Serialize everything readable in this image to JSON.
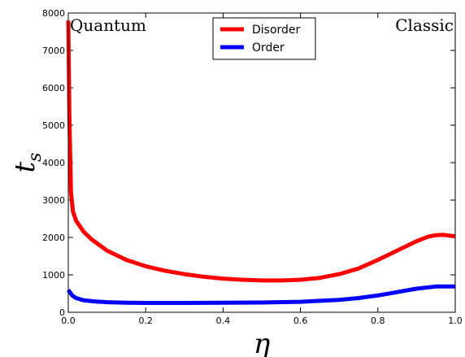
{
  "chart_data": {
    "type": "line",
    "xlabel": "η",
    "ylabel": "t",
    "ylabel_sub": "s",
    "xlim": [
      0.0,
      1.0
    ],
    "ylim": [
      0,
      8000
    ],
    "xticks": [
      "0.0",
      "0.2",
      "0.4",
      "0.6",
      "0.8",
      "1.0"
    ],
    "yticks": [
      "0",
      "1000",
      "2000",
      "3000",
      "4000",
      "5000",
      "6000",
      "7000",
      "8000"
    ],
    "annotations": {
      "left": "Quantum",
      "right": "Classic"
    },
    "legend_position": "top-center",
    "series": [
      {
        "name": "Disorder",
        "color": "#ff0000",
        "x": [
          0.0,
          0.003,
          0.007,
          0.012,
          0.02,
          0.04,
          0.06,
          0.1,
          0.15,
          0.2,
          0.25,
          0.3,
          0.35,
          0.4,
          0.45,
          0.5,
          0.55,
          0.6,
          0.65,
          0.7,
          0.75,
          0.8,
          0.85,
          0.9,
          0.93,
          0.95,
          0.97,
          1.0
        ],
        "y": [
          7800,
          5200,
          3200,
          2700,
          2450,
          2150,
          1950,
          1650,
          1400,
          1230,
          1110,
          1020,
          950,
          900,
          870,
          850,
          850,
          870,
          920,
          1020,
          1170,
          1400,
          1650,
          1900,
          2020,
          2060,
          2070,
          2030
        ]
      },
      {
        "name": "Order",
        "color": "#0000ff",
        "x": [
          0.0,
          0.01,
          0.02,
          0.04,
          0.07,
          0.1,
          0.15,
          0.2,
          0.3,
          0.4,
          0.5,
          0.6,
          0.7,
          0.75,
          0.8,
          0.85,
          0.9,
          0.95,
          1.0
        ],
        "y": [
          600,
          450,
          380,
          320,
          290,
          270,
          255,
          250,
          250,
          255,
          260,
          280,
          330,
          380,
          450,
          540,
          630,
          690,
          690
        ]
      }
    ]
  }
}
